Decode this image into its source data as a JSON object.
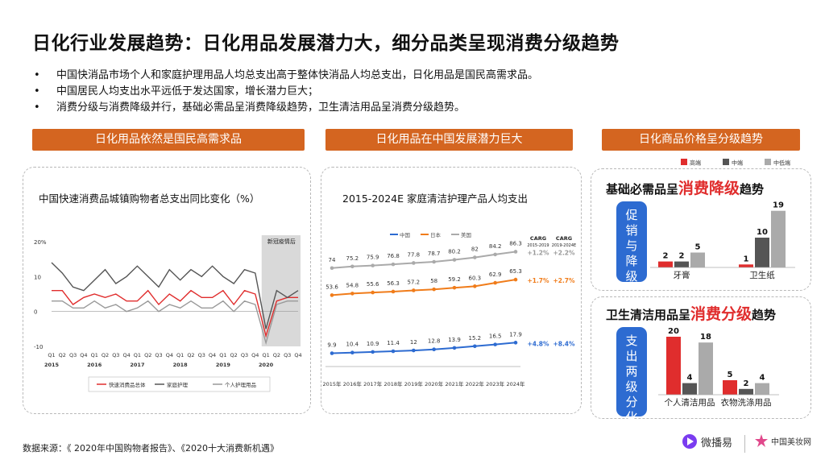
{
  "page": {
    "title": "日化行业发展趋势：日化用品发展潜力大，细分品类呈现消费分级趋势",
    "bullets": [
      "中国快消品市场个人和家庭护理用品人均总支出高于整体快消品人均总支出，日化用品是国民高需求品。",
      "中国居民人均支出水平远低于发达国家，增长潜力巨大；",
      "消费分级与消费降级并行，基础必需品呈消费降级趋势，卫生清洁用品呈消费分级趋势。"
    ],
    "section_labels": [
      "日化用品依然是国民高需求品",
      "日化用品在中国发展潜力巨大",
      "日化商品价格呈分级趋势"
    ],
    "source": "数据来源：《 2020年中国购物者报告》、《2020十大消费新机遇》",
    "logo1": "微播易",
    "logo2": "中国美妆网",
    "colors": {
      "accent": "#d46520",
      "red": "#e02d2d",
      "blue": "#2d6bd1"
    }
  },
  "chart_data": [
    {
      "type": "line",
      "title": "中国快速消费品城镇购物者总支出同比变化（%）",
      "x": [
        "Q1",
        "Q2",
        "Q3",
        "Q4",
        "Q1",
        "Q2",
        "Q3",
        "Q4",
        "Q1",
        "Q2",
        "Q3",
        "Q4",
        "Q1",
        "Q2",
        "Q3",
        "Q4",
        "Q1",
        "Q2",
        "Q3",
        "Q4",
        "Q1",
        "Q2",
        "Q3",
        "Q4"
      ],
      "year_labels": [
        "2015",
        "2016",
        "2017",
        "2018",
        "2019",
        "2020"
      ],
      "y_ticks": [
        "20%",
        "10",
        "0",
        "-10"
      ],
      "ylim": [
        -10,
        20
      ],
      "annotation": "新冠疫情后",
      "series": [
        {
          "name": "快速消费品总体",
          "color": "#e02d2d",
          "values": [
            6,
            6,
            2,
            4,
            5,
            4,
            5,
            3,
            3,
            6,
            2,
            5,
            3,
            6,
            4,
            4,
            6,
            2,
            6,
            5,
            -7,
            3,
            4,
            4
          ]
        },
        {
          "name": "家庭护理",
          "color": "#555555",
          "values": [
            14,
            11,
            7,
            6,
            9,
            12,
            8,
            10,
            13,
            10,
            7,
            12,
            9,
            12,
            10,
            13,
            10,
            8,
            12,
            11,
            -5,
            6,
            4,
            6
          ]
        },
        {
          "name": "个人护理用品",
          "color": "#999999",
          "values": [
            3,
            3,
            1,
            1,
            3,
            1,
            2,
            0,
            1,
            3,
            0,
            2,
            1,
            3,
            1,
            1,
            3,
            0,
            3,
            2,
            -9,
            2,
            3,
            3
          ]
        }
      ]
    },
    {
      "type": "line",
      "title": "2015-2024E 家庭清洁护理产品人均支出",
      "x": [
        "2015年",
        "2016年",
        "2017年",
        "2018年",
        "2019年",
        "2020年",
        "2021年",
        "2022年",
        "2023年",
        "2024年"
      ],
      "series": [
        {
          "name": "中国",
          "color": "#2d6bd1",
          "values": [
            9.9,
            10.4,
            10.9,
            11.4,
            12,
            12.8,
            13.9,
            15.2,
            16.5,
            17.9
          ]
        },
        {
          "name": "日本",
          "color": "#f07c1a",
          "values": [
            53.6,
            54.8,
            55.6,
            56.3,
            57.2,
            58,
            59.2,
            60.3,
            62.9,
            65.3
          ]
        },
        {
          "name": "美国",
          "color": "#aaaaaa",
          "values": [
            74,
            75.2,
            75.9,
            76.8,
            77.8,
            78.7,
            80.2,
            82,
            84.2,
            86.3
          ]
        }
      ],
      "carg_headers": [
        "CARG\n2015-2019",
        "CARG\n2019-2024E"
      ],
      "carg": {
        "美国": [
          "+1.2%",
          "+2.2%"
        ],
        "日本": [
          "+1.7%",
          "+2.7%"
        ],
        "中国": [
          "+4.8%",
          "+8.4%"
        ]
      }
    },
    {
      "type": "bar",
      "heading_prefix": "基础必需品呈",
      "heading_highlight": "消费降级",
      "heading_suffix": "趋势",
      "side_label": "促销与降级",
      "categories": [
        "牙膏",
        "卫生纸"
      ],
      "series": [
        {
          "name": "高端",
          "color": "#e02d2d",
          "values": [
            2,
            1
          ]
        },
        {
          "name": "中端",
          "color": "#555555",
          "values": [
            2,
            10
          ]
        },
        {
          "name": "中低端",
          "color": "#aaaaaa",
          "values": [
            5,
            19
          ]
        }
      ]
    },
    {
      "type": "bar",
      "heading_prefix": "卫生清洁用品呈",
      "heading_highlight": "消费分级",
      "heading_suffix": "趋势",
      "side_label": "支出两级分化",
      "categories": [
        "个人清洁用品",
        "衣物洗涤用品"
      ],
      "series": [
        {
          "name": "高端",
          "color": "#e02d2d",
          "values": [
            20,
            5
          ]
        },
        {
          "name": "中端",
          "color": "#555555",
          "values": [
            4,
            2
          ]
        },
        {
          "name": "中低端",
          "color": "#aaaaaa",
          "values": [
            18,
            4
          ]
        }
      ]
    }
  ]
}
